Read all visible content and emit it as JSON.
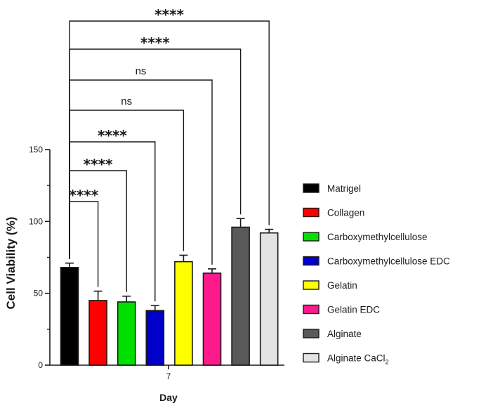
{
  "chart_data": {
    "type": "bar",
    "ylabel": "Cell Viability (%)",
    "xlabel": "Day",
    "categories": [
      "7"
    ],
    "ylim": [
      0,
      150
    ],
    "yticks": [
      "0",
      "50",
      "100",
      "150"
    ],
    "series": [
      {
        "name": "Matrigel",
        "value": 68,
        "error": 3,
        "color": "#000000"
      },
      {
        "name": "Collagen",
        "value": 45,
        "error": 6.5,
        "color": "#ff0000"
      },
      {
        "name": "Carboxymethylcellulose",
        "value": 44,
        "error": 4,
        "color": "#00e000"
      },
      {
        "name": "Carboxymethylcellulose EDC",
        "value": 38,
        "error": 3.5,
        "color": "#0000c8"
      },
      {
        "name": "Gelatin",
        "value": 72,
        "error": 4.5,
        "color": "#ffff00"
      },
      {
        "name": "Gelatin EDC",
        "value": 64,
        "error": 3,
        "color": "#ff1a8c"
      },
      {
        "name": "Alginate",
        "value": 96,
        "error": 6,
        "color": "#595959"
      },
      {
        "name": "Alginate CaCl2",
        "label_main": "Alginate CaCl",
        "label_sub": "2",
        "value": 92,
        "error": 2.5,
        "color": "#e3e3e3"
      }
    ],
    "comparisons": [
      {
        "to": 1,
        "label": "****"
      },
      {
        "to": 2,
        "label": "****"
      },
      {
        "to": 3,
        "label": "****"
      },
      {
        "to": 4,
        "label": "ns"
      },
      {
        "to": 5,
        "label": "ns"
      },
      {
        "to": 6,
        "label": "****"
      },
      {
        "to": 7,
        "label": "****"
      }
    ],
    "legend_position": "right"
  }
}
